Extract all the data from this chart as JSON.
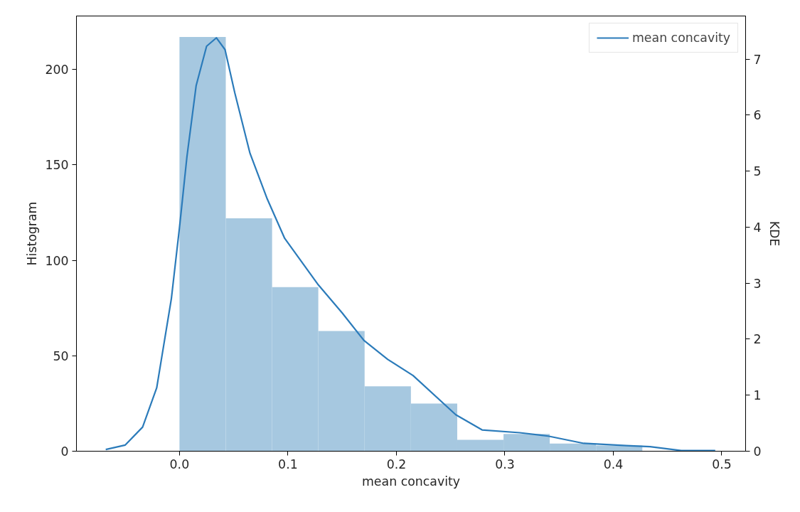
{
  "chart_data": {
    "type": "histogram",
    "xlabel": "mean concavity",
    "ylabel": "Histogram",
    "y2label": "KDE",
    "bins": [
      0,
      0.0427,
      0.0854,
      0.128,
      0.1707,
      0.2134,
      0.2561,
      0.2988,
      0.3414,
      0.3841,
      0.4268
    ],
    "series": [
      {
        "color": "#a6c8e0",
        "values": [
          217,
          122,
          86,
          63,
          34,
          25,
          6,
          9,
          4,
          3
        ]
      },
      {
        "type": "line",
        "name": "mean concavity",
        "axis": "y2",
        "color": "#2b7bba",
        "x": [
          -0.068,
          -0.05,
          -0.034,
          -0.021,
          -0.0075,
          0.0,
          0.0069,
          0.0154,
          0.025,
          0.034,
          0.042,
          0.051,
          0.065,
          0.081,
          0.097,
          0.128,
          0.15,
          0.17,
          0.192,
          0.2154,
          0.2548,
          0.279,
          0.3138,
          0.34,
          0.3728,
          0.412,
          0.4339,
          0.4627,
          0.494
        ],
        "values": [
          0.03,
          0.11,
          0.43,
          1.13,
          2.72,
          3.99,
          5.26,
          6.53,
          7.23,
          7.38,
          7.17,
          6.4,
          5.32,
          4.5,
          3.8,
          2.97,
          2.47,
          1.98,
          1.64,
          1.35,
          0.65,
          0.38,
          0.33,
          0.27,
          0.14,
          0.1,
          0.08,
          0.01,
          0.01
        ]
      }
    ],
    "xlim": [
      -0.095,
      0.522
    ],
    "xticks": [
      {
        "value": 0,
        "label": "0.0"
      },
      0.1,
      0.2,
      0.3,
      0.4,
      0.5
    ],
    "ylim": [
      0,
      228
    ],
    "yticks": [
      0,
      50,
      100,
      150,
      200
    ],
    "y2lim": [
      0,
      7.77
    ],
    "y2ticks": [
      0,
      1,
      2,
      3,
      4,
      5,
      6,
      7
    ],
    "legend": "top right",
    "grid": false
  }
}
